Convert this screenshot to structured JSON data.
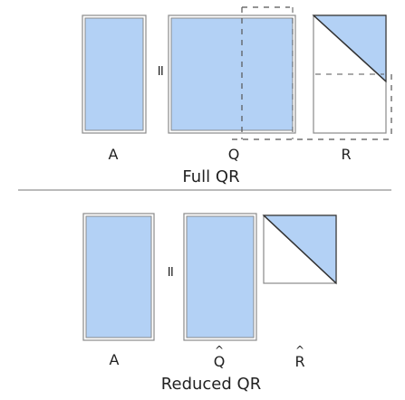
{
  "full": {
    "title": "Full QR",
    "label_a": "A",
    "label_q": "Q",
    "label_r": "R",
    "equals": "="
  },
  "reduced": {
    "title": "Reduced QR",
    "label_a": "A",
    "label_q": "Q",
    "label_r": "R",
    "hat": "^",
    "equals": "="
  },
  "colors": {
    "fill": "#b3d1f5",
    "stroke": "#8a8a8a",
    "dash": "#555555",
    "separator": "#777777"
  }
}
